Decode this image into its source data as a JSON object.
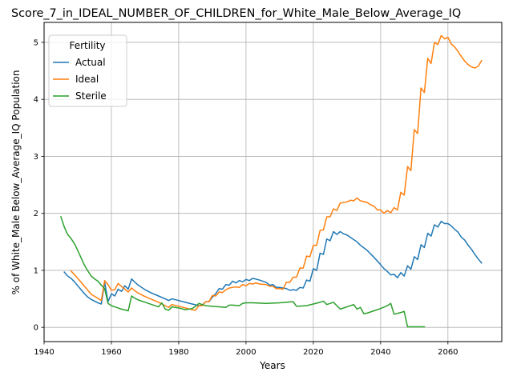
{
  "chart_data": {
    "type": "line",
    "title": "Score_7_in_IDEAL_NUMBER_OF_CHILDREN_for_White_Male_Below_Average_IQ",
    "xlabel": "Years",
    "ylabel": "% of White_Male Below_Average_IQ Population",
    "xlim": [
      1940,
      2076
    ],
    "ylim": [
      -0.25,
      5.35
    ],
    "x_ticks": [
      1940,
      1960,
      1980,
      2000,
      2020,
      2040,
      2060
    ],
    "y_ticks": [
      0,
      1,
      2,
      3,
      4,
      5
    ],
    "grid": true,
    "legend": {
      "title": "Fertility",
      "position": "top-left"
    },
    "series": [
      {
        "name": "Actual",
        "color": "#1f77b4",
        "points": [
          [
            1946,
            0.97
          ],
          [
            1947,
            0.9
          ],
          [
            1948,
            0.86
          ],
          [
            1949,
            0.8
          ],
          [
            1950,
            0.73
          ],
          [
            1951,
            0.66
          ],
          [
            1952,
            0.59
          ],
          [
            1953,
            0.53
          ],
          [
            1954,
            0.49
          ],
          [
            1955,
            0.46
          ],
          [
            1956,
            0.43
          ],
          [
            1957,
            0.41
          ],
          [
            1958,
            0.79
          ],
          [
            1959,
            0.45
          ],
          [
            1960,
            0.59
          ],
          [
            1961,
            0.55
          ],
          [
            1962,
            0.67
          ],
          [
            1963,
            0.63
          ],
          [
            1964,
            0.73
          ],
          [
            1965,
            0.67
          ],
          [
            1966,
            0.85
          ],
          [
            1967,
            0.79
          ],
          [
            1968,
            0.74
          ],
          [
            1969,
            0.7
          ],
          [
            1970,
            0.66
          ],
          [
            1972,
            0.6
          ],
          [
            1974,
            0.55
          ],
          [
            1976,
            0.5
          ],
          [
            1977,
            0.47
          ],
          [
            1978,
            0.5
          ],
          [
            1980,
            0.47
          ],
          [
            1982,
            0.44
          ],
          [
            1984,
            0.41
          ],
          [
            1986,
            0.38
          ],
          [
            1987,
            0.39
          ],
          [
            1988,
            0.45
          ],
          [
            1989,
            0.45
          ],
          [
            1990,
            0.53
          ],
          [
            1991,
            0.59
          ],
          [
            1992,
            0.68
          ],
          [
            1993,
            0.67
          ],
          [
            1994,
            0.75
          ],
          [
            1995,
            0.74
          ],
          [
            1996,
            0.81
          ],
          [
            1997,
            0.78
          ],
          [
            1998,
            0.82
          ],
          [
            1999,
            0.8
          ],
          [
            2000,
            0.84
          ],
          [
            2001,
            0.82
          ],
          [
            2002,
            0.86
          ],
          [
            2004,
            0.83
          ],
          [
            2006,
            0.79
          ],
          [
            2007,
            0.74
          ],
          [
            2008,
            0.75
          ],
          [
            2009,
            0.7
          ],
          [
            2010,
            0.7
          ],
          [
            2011,
            0.69
          ],
          [
            2012,
            0.68
          ],
          [
            2013,
            0.65
          ],
          [
            2014,
            0.66
          ],
          [
            2015,
            0.65
          ],
          [
            2016,
            0.7
          ],
          [
            2017,
            0.69
          ],
          [
            2018,
            0.83
          ],
          [
            2019,
            0.81
          ],
          [
            2020,
            1.03
          ],
          [
            2021,
            1.0
          ],
          [
            2022,
            1.3
          ],
          [
            2023,
            1.28
          ],
          [
            2024,
            1.55
          ],
          [
            2025,
            1.52
          ],
          [
            2026,
            1.68
          ],
          [
            2027,
            1.63
          ],
          [
            2028,
            1.68
          ],
          [
            2029,
            1.64
          ],
          [
            2030,
            1.62
          ],
          [
            2032,
            1.54
          ],
          [
            2033,
            1.5
          ],
          [
            2034,
            1.44
          ],
          [
            2036,
            1.35
          ],
          [
            2038,
            1.23
          ],
          [
            2040,
            1.1
          ],
          [
            2041,
            1.03
          ],
          [
            2042,
            0.98
          ],
          [
            2043,
            0.92
          ],
          [
            2044,
            0.93
          ],
          [
            2045,
            0.87
          ],
          [
            2046,
            0.96
          ],
          [
            2047,
            0.9
          ],
          [
            2048,
            1.08
          ],
          [
            2049,
            1.02
          ],
          [
            2050,
            1.24
          ],
          [
            2051,
            1.19
          ],
          [
            2052,
            1.45
          ],
          [
            2053,
            1.4
          ],
          [
            2054,
            1.65
          ],
          [
            2055,
            1.6
          ],
          [
            2056,
            1.8
          ],
          [
            2057,
            1.76
          ],
          [
            2058,
            1.86
          ],
          [
            2059,
            1.82
          ],
          [
            2060,
            1.82
          ],
          [
            2061,
            1.78
          ],
          [
            2062,
            1.72
          ],
          [
            2063,
            1.67
          ],
          [
            2064,
            1.58
          ],
          [
            2065,
            1.53
          ],
          [
            2066,
            1.44
          ],
          [
            2067,
            1.37
          ],
          [
            2068,
            1.28
          ],
          [
            2069,
            1.2
          ],
          [
            2070,
            1.13
          ]
        ]
      },
      {
        "name": "Ideal",
        "color": "#ff7f0e",
        "points": [
          [
            1948,
            0.99
          ],
          [
            1950,
            0.86
          ],
          [
            1952,
            0.72
          ],
          [
            1954,
            0.58
          ],
          [
            1956,
            0.51
          ],
          [
            1957,
            0.47
          ],
          [
            1958,
            0.82
          ],
          [
            1959,
            0.75
          ],
          [
            1960,
            0.65
          ],
          [
            1961,
            0.66
          ],
          [
            1962,
            0.77
          ],
          [
            1963,
            0.72
          ],
          [
            1965,
            0.62
          ],
          [
            1966,
            0.69
          ],
          [
            1967,
            0.64
          ],
          [
            1968,
            0.6
          ],
          [
            1970,
            0.54
          ],
          [
            1972,
            0.49
          ],
          [
            1974,
            0.44
          ],
          [
            1976,
            0.38
          ],
          [
            1977,
            0.35
          ],
          [
            1978,
            0.4
          ],
          [
            1980,
            0.37
          ],
          [
            1982,
            0.34
          ],
          [
            1984,
            0.31
          ],
          [
            1985,
            0.3
          ],
          [
            1986,
            0.38
          ],
          [
            1987,
            0.38
          ],
          [
            1988,
            0.45
          ],
          [
            1989,
            0.45
          ],
          [
            1990,
            0.56
          ],
          [
            1991,
            0.55
          ],
          [
            1992,
            0.62
          ],
          [
            1993,
            0.61
          ],
          [
            1994,
            0.66
          ],
          [
            1995,
            0.69
          ],
          [
            1996,
            0.7
          ],
          [
            1997,
            0.71
          ],
          [
            1998,
            0.7
          ],
          [
            1999,
            0.75
          ],
          [
            2000,
            0.73
          ],
          [
            2001,
            0.77
          ],
          [
            2002,
            0.76
          ],
          [
            2003,
            0.78
          ],
          [
            2004,
            0.76
          ],
          [
            2006,
            0.75
          ],
          [
            2007,
            0.72
          ],
          [
            2008,
            0.72
          ],
          [
            2009,
            0.68
          ],
          [
            2010,
            0.68
          ],
          [
            2011,
            0.67
          ],
          [
            2012,
            0.79
          ],
          [
            2013,
            0.79
          ],
          [
            2014,
            0.88
          ],
          [
            2015,
            0.88
          ],
          [
            2016,
            1.04
          ],
          [
            2017,
            1.04
          ],
          [
            2018,
            1.25
          ],
          [
            2019,
            1.24
          ],
          [
            2020,
            1.44
          ],
          [
            2021,
            1.44
          ],
          [
            2022,
            1.7
          ],
          [
            2023,
            1.71
          ],
          [
            2024,
            1.94
          ],
          [
            2025,
            1.94
          ],
          [
            2026,
            2.08
          ],
          [
            2027,
            2.05
          ],
          [
            2028,
            2.18
          ],
          [
            2030,
            2.2
          ],
          [
            2031,
            2.23
          ],
          [
            2032,
            2.22
          ],
          [
            2033,
            2.27
          ],
          [
            2034,
            2.22
          ],
          [
            2036,
            2.19
          ],
          [
            2037,
            2.15
          ],
          [
            2038,
            2.13
          ],
          [
            2039,
            2.06
          ],
          [
            2040,
            2.06
          ],
          [
            2041,
            2.0
          ],
          [
            2042,
            2.05
          ],
          [
            2043,
            2.01
          ],
          [
            2044,
            2.1
          ],
          [
            2045,
            2.06
          ],
          [
            2046,
            2.37
          ],
          [
            2047,
            2.32
          ],
          [
            2048,
            2.82
          ],
          [
            2049,
            2.75
          ],
          [
            2050,
            3.47
          ],
          [
            2051,
            3.4
          ],
          [
            2052,
            4.2
          ],
          [
            2053,
            4.12
          ],
          [
            2054,
            4.72
          ],
          [
            2055,
            4.63
          ],
          [
            2056,
            5.0
          ],
          [
            2057,
            4.96
          ],
          [
            2058,
            5.12
          ],
          [
            2059,
            5.06
          ],
          [
            2060,
            5.09
          ],
          [
            2061,
            4.97
          ],
          [
            2062,
            4.92
          ],
          [
            2063,
            4.84
          ],
          [
            2064,
            4.75
          ],
          [
            2065,
            4.67
          ],
          [
            2066,
            4.61
          ],
          [
            2067,
            4.57
          ],
          [
            2068,
            4.55
          ],
          [
            2069,
            4.58
          ],
          [
            2070,
            4.68
          ]
        ]
      },
      {
        "name": "Sterile",
        "color": "#2ca02c",
        "points": [
          [
            1945,
            1.94
          ],
          [
            1946,
            1.76
          ],
          [
            1947,
            1.63
          ],
          [
            1948,
            1.56
          ],
          [
            1949,
            1.47
          ],
          [
            1950,
            1.35
          ],
          [
            1951,
            1.22
          ],
          [
            1952,
            1.09
          ],
          [
            1953,
            0.99
          ],
          [
            1954,
            0.9
          ],
          [
            1955,
            0.85
          ],
          [
            1956,
            0.81
          ],
          [
            1957,
            0.74
          ],
          [
            1958,
            0.68
          ],
          [
            1959,
            0.42
          ],
          [
            1960,
            0.38
          ],
          [
            1961,
            0.36
          ],
          [
            1962,
            0.34
          ],
          [
            1963,
            0.32
          ],
          [
            1965,
            0.29
          ],
          [
            1966,
            0.55
          ],
          [
            1967,
            0.51
          ],
          [
            1968,
            0.48
          ],
          [
            1970,
            0.44
          ],
          [
            1972,
            0.4
          ],
          [
            1974,
            0.36
          ],
          [
            1975,
            0.43
          ],
          [
            1976,
            0.32
          ],
          [
            1977,
            0.3
          ],
          [
            1978,
            0.36
          ],
          [
            1980,
            0.34
          ],
          [
            1982,
            0.31
          ],
          [
            1984,
            0.33
          ],
          [
            1985,
            0.37
          ],
          [
            1986,
            0.42
          ],
          [
            1987,
            0.4
          ],
          [
            1988,
            0.38
          ],
          [
            1990,
            0.37
          ],
          [
            1992,
            0.36
          ],
          [
            1994,
            0.35
          ],
          [
            1995,
            0.39
          ],
          [
            1996,
            0.39
          ],
          [
            1998,
            0.38
          ],
          [
            1999,
            0.42
          ],
          [
            2000,
            0.43
          ],
          [
            2002,
            0.43
          ],
          [
            2006,
            0.42
          ],
          [
            2010,
            0.43
          ],
          [
            2014,
            0.45
          ],
          [
            2015,
            0.37
          ],
          [
            2018,
            0.38
          ],
          [
            2020,
            0.41
          ],
          [
            2022,
            0.44
          ],
          [
            2023,
            0.46
          ],
          [
            2024,
            0.4
          ],
          [
            2026,
            0.44
          ],
          [
            2028,
            0.32
          ],
          [
            2030,
            0.36
          ],
          [
            2032,
            0.4
          ],
          [
            2033,
            0.32
          ],
          [
            2034,
            0.35
          ],
          [
            2035,
            0.24
          ],
          [
            2036,
            0.25
          ],
          [
            2038,
            0.29
          ],
          [
            2040,
            0.33
          ],
          [
            2042,
            0.38
          ],
          [
            2043,
            0.42
          ],
          [
            2044,
            0.23
          ],
          [
            2046,
            0.26
          ],
          [
            2047,
            0.28
          ],
          [
            2048,
            0.01
          ],
          [
            2050,
            0.01
          ],
          [
            2053,
            0.01
          ]
        ]
      }
    ]
  }
}
